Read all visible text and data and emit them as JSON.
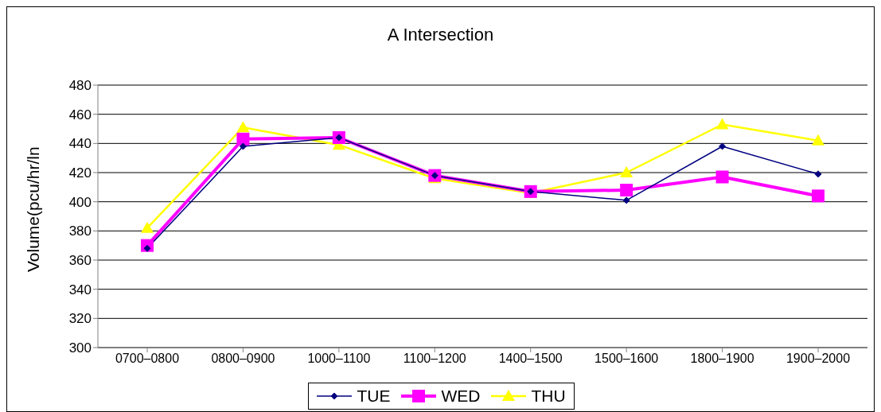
{
  "chart_data": {
    "type": "line",
    "title": "A Intersection",
    "ylabel": "Volume(pcu/hr/ln",
    "categories": [
      "0700–0800",
      "0800–0900",
      "1000–1100",
      "1100–1200",
      "1400–1500",
      "1500–1600",
      "1800–1900",
      "1900–2000"
    ],
    "series": [
      {
        "name": "TUE",
        "color": "#000080",
        "marker": "diamond",
        "values": [
          368,
          438,
          444,
          418,
          407,
          401,
          438,
          419
        ]
      },
      {
        "name": "WED",
        "color": "#ff00ff",
        "marker": "square",
        "values": [
          370,
          443,
          444,
          418,
          407,
          408,
          417,
          404
        ]
      },
      {
        "name": "THU",
        "color": "#ffff00",
        "marker": "triangle",
        "values": [
          382,
          451,
          439,
          416,
          406,
          420,
          453,
          442
        ]
      }
    ],
    "ylim": [
      300,
      480
    ],
    "yticks": [
      300,
      320,
      340,
      360,
      380,
      400,
      420,
      440,
      460,
      480
    ],
    "grid": "y",
    "legend": "bottom"
  }
}
